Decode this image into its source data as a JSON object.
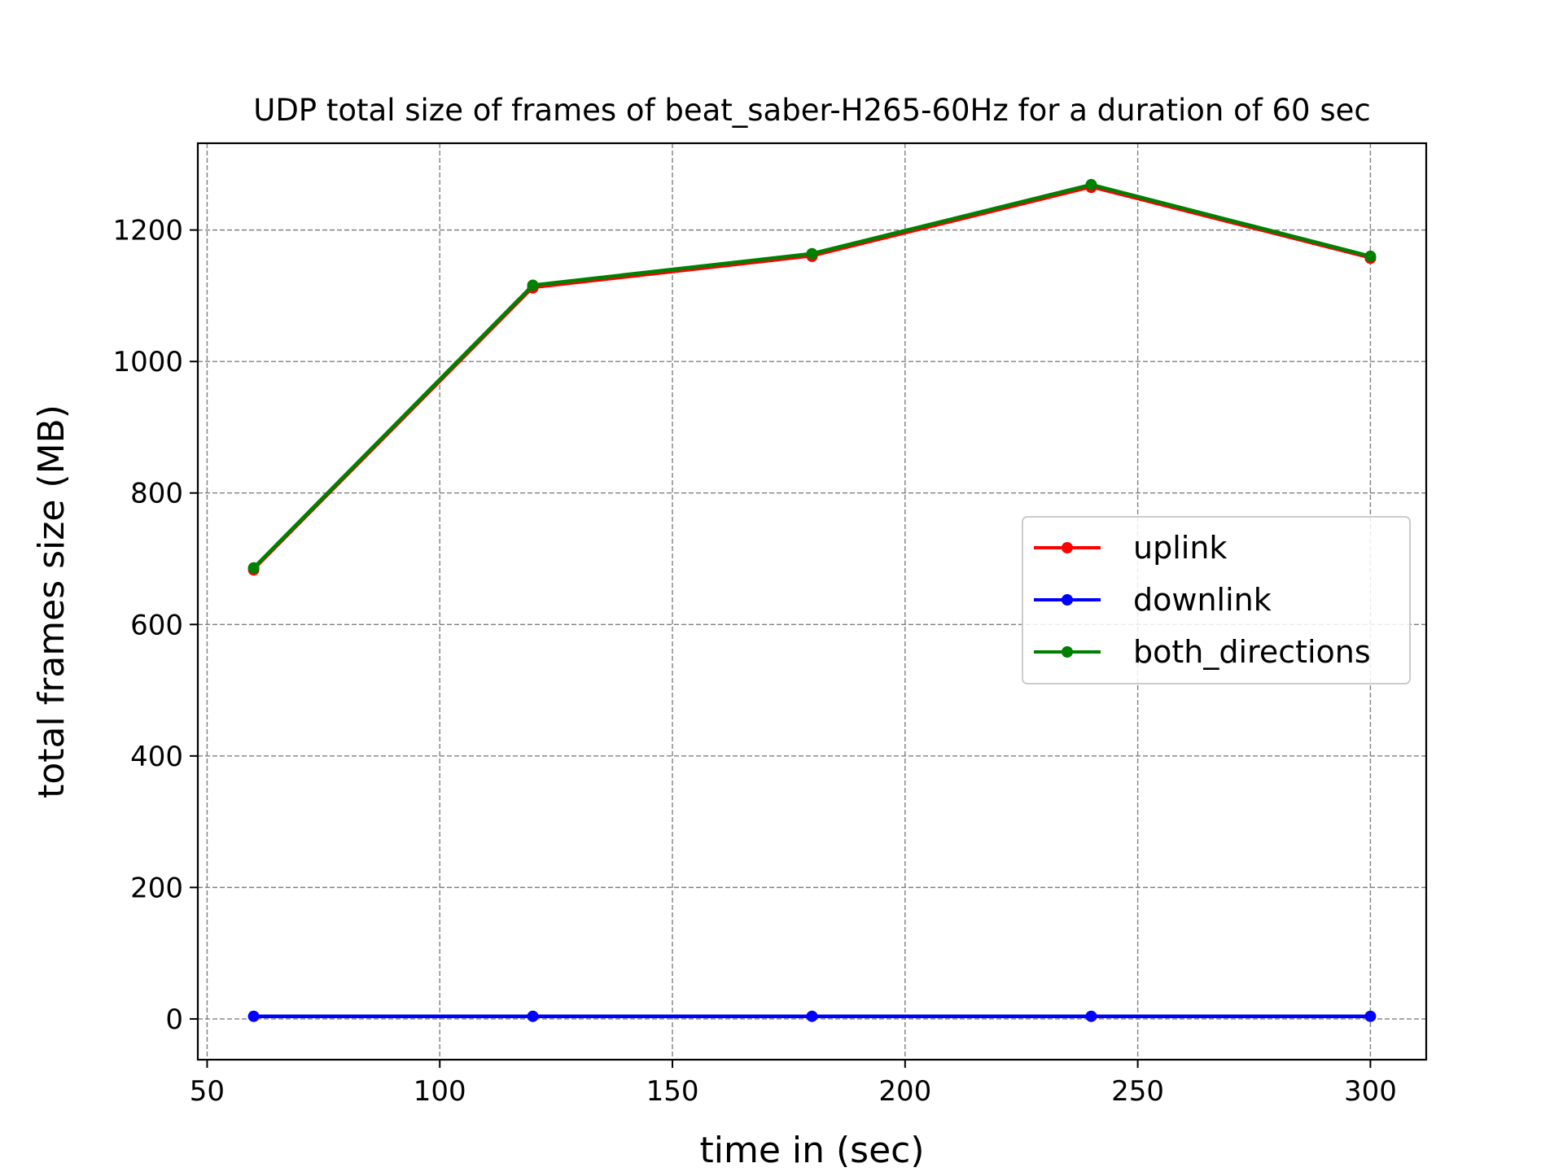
{
  "chart_data": {
    "type": "line",
    "title": "UDP total size of frames of beat_saber-H265-60Hz for a duration of 60 sec",
    "xlabel": "time in (sec)",
    "ylabel": "total frames size (MB)",
    "x": [
      60,
      120,
      180,
      240,
      300
    ],
    "xlim": [
      48,
      312
    ],
    "ylim": [
      -62,
      1332
    ],
    "xticks": [
      50,
      100,
      150,
      200,
      250,
      300
    ],
    "yticks": [
      0,
      200,
      400,
      600,
      800,
      1000,
      1200
    ],
    "grid": true,
    "legend_position": "center-right",
    "series": [
      {
        "name": "uplink",
        "color": "#ff0000",
        "values": [
          683,
          1112,
          1160,
          1265,
          1157
        ]
      },
      {
        "name": "downlink",
        "color": "#0000ff",
        "values": [
          4,
          4,
          4,
          4,
          4
        ]
      },
      {
        "name": "both_directions",
        "color": "#008000",
        "values": [
          686,
          1116,
          1164,
          1269,
          1160
        ]
      }
    ]
  }
}
